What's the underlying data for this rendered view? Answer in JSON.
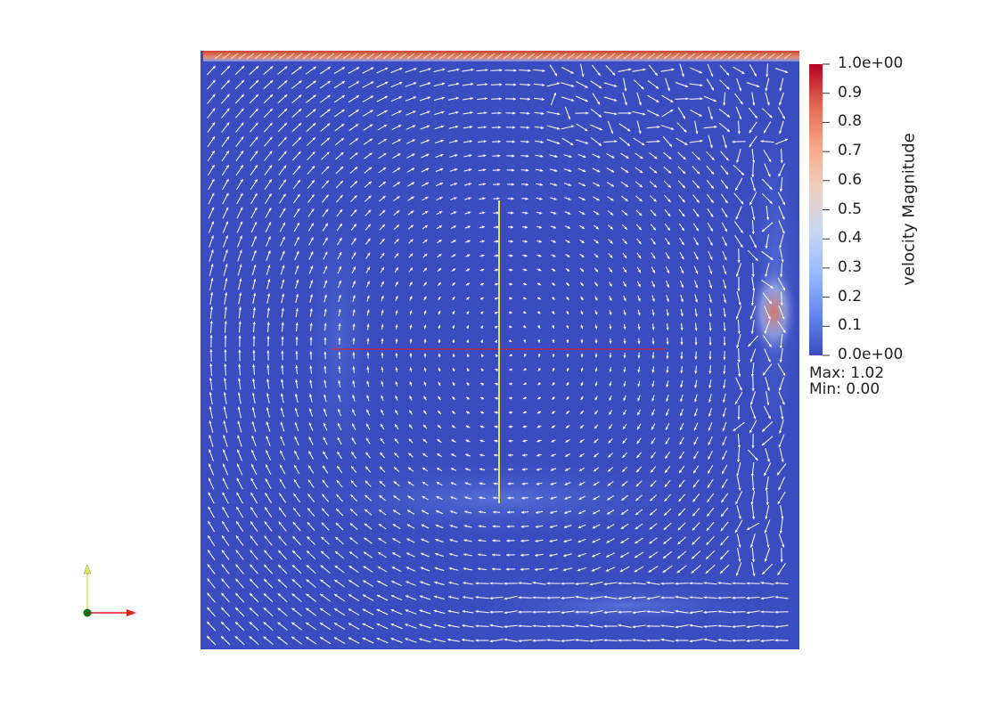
{
  "scalar_bar": {
    "title": "velocity Magnitude",
    "tick_labels": [
      "1.0e+00",
      "0.9",
      "0.8",
      "0.7",
      "0.6",
      "0.5",
      "0.4",
      "0.3",
      "0.2",
      "0.1",
      "0.0e+00"
    ],
    "max_label": "Max: 1.02",
    "min_label": "Min: 0.00",
    "colormap": [
      "#3b4cc0",
      "#6788ee",
      "#9abbff",
      "#c9d7f0",
      "#edd1c2",
      "#f7a889",
      "#e26952",
      "#b40426"
    ]
  },
  "colors": {
    "background": "#ffffff",
    "field_base": "#3b4cc0",
    "lid_strip": "#d0553f",
    "arrows": "#ffffff",
    "crosshair_horizontal": "#e02020",
    "crosshair_vertical": "#e6e64a",
    "axis_x": "#e02020",
    "axis_y": "#e6e64a",
    "axis_origin": "#1a6b1a"
  }
}
